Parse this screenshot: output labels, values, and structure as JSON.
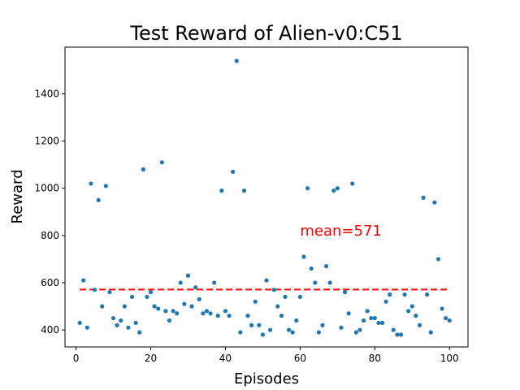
{
  "chart_data": {
    "type": "scatter",
    "title": "Test Reward of Alien-v0:C51",
    "xlabel": "Episodes",
    "ylabel": "Reward",
    "xlim": [
      -2.95,
      104.95
    ],
    "ylim": [
      328,
      1598
    ],
    "xticks": [
      0,
      20,
      40,
      60,
      80,
      100
    ],
    "yticks": [
      400,
      600,
      800,
      1000,
      1200,
      1400
    ],
    "grid": false,
    "point_color": "#1f77b4",
    "mean": {
      "value": 571,
      "label": "mean=571",
      "color": "#ff0000",
      "x_start": 1,
      "x_end": 100,
      "label_x": 60,
      "label_y": 800
    },
    "points": [
      [
        1,
        430
      ],
      [
        2,
        610
      ],
      [
        3,
        410
      ],
      [
        4,
        1020
      ],
      [
        5,
        570
      ],
      [
        6,
        950
      ],
      [
        7,
        500
      ],
      [
        8,
        1010
      ],
      [
        9,
        560
      ],
      [
        10,
        450
      ],
      [
        11,
        420
      ],
      [
        12,
        440
      ],
      [
        13,
        500
      ],
      [
        14,
        410
      ],
      [
        15,
        540
      ],
      [
        16,
        430
      ],
      [
        17,
        390
      ],
      [
        18,
        1080
      ],
      [
        19,
        540
      ],
      [
        20,
        560
      ],
      [
        21,
        500
      ],
      [
        22,
        490
      ],
      [
        23,
        1110
      ],
      [
        24,
        480
      ],
      [
        25,
        440
      ],
      [
        26,
        480
      ],
      [
        27,
        470
      ],
      [
        28,
        600
      ],
      [
        29,
        510
      ],
      [
        30,
        630
      ],
      [
        31,
        500
      ],
      [
        32,
        580
      ],
      [
        33,
        530
      ],
      [
        34,
        470
      ],
      [
        35,
        480
      ],
      [
        36,
        470
      ],
      [
        37,
        600
      ],
      [
        38,
        460
      ],
      [
        39,
        990
      ],
      [
        40,
        480
      ],
      [
        41,
        460
      ],
      [
        42,
        1070
      ],
      [
        43,
        1540
      ],
      [
        44,
        390
      ],
      [
        45,
        990
      ],
      [
        46,
        460
      ],
      [
        47,
        420
      ],
      [
        48,
        520
      ],
      [
        49,
        420
      ],
      [
        50,
        380
      ],
      [
        51,
        610
      ],
      [
        52,
        400
      ],
      [
        53,
        570
      ],
      [
        54,
        500
      ],
      [
        55,
        460
      ],
      [
        56,
        540
      ],
      [
        57,
        400
      ],
      [
        58,
        390
      ],
      [
        59,
        440
      ],
      [
        60,
        540
      ],
      [
        61,
        710
      ],
      [
        62,
        1000
      ],
      [
        63,
        660
      ],
      [
        64,
        600
      ],
      [
        65,
        390
      ],
      [
        66,
        420
      ],
      [
        67,
        670
      ],
      [
        68,
        600
      ],
      [
        69,
        990
      ],
      [
        70,
        1000
      ],
      [
        71,
        410
      ],
      [
        72,
        560
      ],
      [
        73,
        470
      ],
      [
        74,
        1020
      ],
      [
        75,
        390
      ],
      [
        76,
        400
      ],
      [
        77,
        440
      ],
      [
        78,
        480
      ],
      [
        79,
        450
      ],
      [
        80,
        450
      ],
      [
        81,
        430
      ],
      [
        82,
        430
      ],
      [
        83,
        520
      ],
      [
        84,
        550
      ],
      [
        85,
        400
      ],
      [
        86,
        380
      ],
      [
        87,
        380
      ],
      [
        88,
        550
      ],
      [
        89,
        480
      ],
      [
        90,
        500
      ],
      [
        91,
        460
      ],
      [
        92,
        420
      ],
      [
        93,
        960
      ],
      [
        94,
        550
      ],
      [
        95,
        390
      ],
      [
        96,
        940
      ],
      [
        97,
        700
      ],
      [
        98,
        490
      ],
      [
        99,
        450
      ],
      [
        100,
        440
      ]
    ]
  }
}
